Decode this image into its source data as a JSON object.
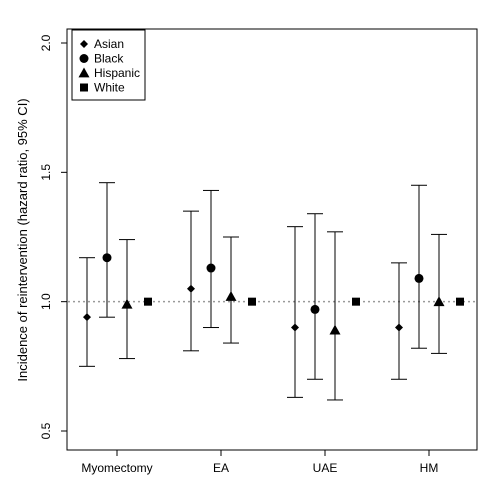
{
  "chart_data": {
    "type": "scatter",
    "ylabel": "Incidence of reintervention (hazard ratio, 95% CI)",
    "xlabel": "",
    "ylim": [
      0.5,
      2.0
    ],
    "yticks": [
      "0.5",
      "1.0",
      "1.5",
      "2.0"
    ],
    "reference_line": 1.0,
    "categories": [
      "Myomectomy",
      "EA",
      "UAE",
      "HM"
    ],
    "legend_position": "top-left",
    "series": [
      {
        "name": "Asian",
        "marker": "diamond",
        "values": [
          0.94,
          1.05,
          0.9,
          0.9
        ],
        "lower": [
          0.75,
          0.81,
          0.63,
          0.7
        ],
        "upper": [
          1.17,
          1.35,
          1.29,
          1.15
        ]
      },
      {
        "name": "Black",
        "marker": "circle",
        "values": [
          1.17,
          1.13,
          0.97,
          1.09
        ],
        "lower": [
          0.94,
          0.9,
          0.7,
          0.82
        ],
        "upper": [
          1.46,
          1.43,
          1.34,
          1.45
        ]
      },
      {
        "name": "Hispanic",
        "marker": "triangle",
        "values": [
          0.99,
          1.02,
          0.89,
          1.0
        ],
        "lower": [
          0.78,
          0.84,
          0.62,
          0.8
        ],
        "upper": [
          1.24,
          1.25,
          1.27,
          1.26
        ]
      },
      {
        "name": "White",
        "marker": "square",
        "values": [
          1.0,
          1.0,
          1.0,
          1.0
        ],
        "lower": [
          null,
          null,
          null,
          null
        ],
        "upper": [
          null,
          null,
          null,
          null
        ]
      }
    ]
  }
}
